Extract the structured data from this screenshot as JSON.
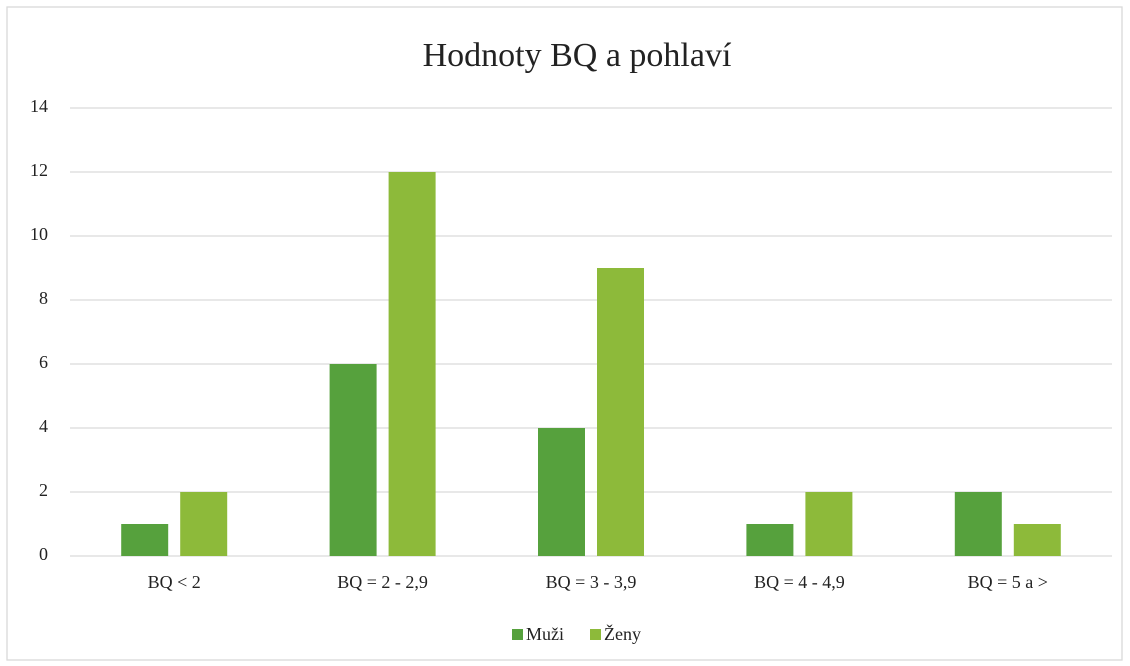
{
  "chart_data": {
    "type": "bar",
    "title": "Hodnoty BQ a pohlaví",
    "categories": [
      "BQ < 2",
      "BQ = 2 - 2,9",
      "BQ = 3 - 3,9",
      "BQ = 4 - 4,9",
      "BQ = 5 a >"
    ],
    "series": [
      {
        "name": "Muži",
        "color": "#56a13d",
        "values": [
          1,
          6,
          4,
          1,
          2
        ]
      },
      {
        "name": "Ženy",
        "color": "#8dba3a",
        "values": [
          2,
          12,
          9,
          2,
          1
        ]
      }
    ],
    "ylim": [
      0,
      14
    ],
    "yticks": [
      0,
      2,
      4,
      6,
      8,
      10,
      12,
      14
    ],
    "grid": true,
    "legend": "bottom"
  }
}
